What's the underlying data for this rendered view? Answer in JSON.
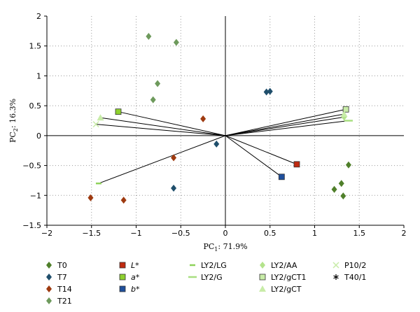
{
  "chart_data": {
    "type": "scatter",
    "title": "",
    "xlabel": "PC1: 71.9%",
    "ylabel": "PC2: 16.3%",
    "xlabel_parts": {
      "base": "PC",
      "sub": "1",
      "rest": ": 71.9%"
    },
    "ylabel_parts": {
      "base": "PC",
      "sub": "2",
      "rest": ": 16.3%"
    },
    "xlim": [
      -2,
      2
    ],
    "ylim": [
      -1.5,
      2
    ],
    "xticks": [
      -2,
      -1.5,
      -1,
      -0.5,
      0,
      0.5,
      1,
      1.5,
      2
    ],
    "yticks": [
      -1.5,
      -1,
      -0.5,
      0,
      0.5,
      1,
      1.5,
      2
    ],
    "xtick_labels": [
      "−2",
      "−1.5",
      "−1",
      "−0.5",
      "0",
      "0.5",
      "1",
      "1.5",
      "2"
    ],
    "ytick_labels": [
      "−1.5",
      "−1",
      "−0.5",
      "0",
      "0.5",
      "1",
      "1.5",
      "2"
    ],
    "grid": "dotted",
    "legend_position": "bottom",
    "loadings": [
      {
        "name": "L*",
        "x": 0.8,
        "y": -0.48
      },
      {
        "name": "b*",
        "x": 0.63,
        "y": -0.69
      },
      {
        "name": "a*",
        "x": -1.2,
        "y": 0.4
      },
      {
        "name": "LY2/LG",
        "x": -1.42,
        "y": -0.8
      },
      {
        "name": "LY2/G",
        "x": 1.38,
        "y": 0.25
      },
      {
        "name": "LY2/AA",
        "x": 1.33,
        "y": 0.31
      },
      {
        "name": "LY2/gCT1",
        "x": 1.35,
        "y": 0.44
      },
      {
        "name": "LY2/gCT",
        "x": 1.33,
        "y": 0.36
      },
      {
        "name": "P10/2",
        "x": -1.45,
        "y": 0.19
      },
      {
        "name": "LY2/gCT",
        "x": -1.4,
        "y": 0.3
      }
    ],
    "series": [
      {
        "name": "T0",
        "marker": "diamond",
        "color": "#4f7f2a",
        "points": [
          [
            1.22,
            -0.9
          ],
          [
            1.3,
            -0.8
          ],
          [
            1.32,
            -1.01
          ],
          [
            1.38,
            -0.49
          ]
        ]
      },
      {
        "name": "T7",
        "marker": "diamond",
        "color": "#1f4e6b",
        "points": [
          [
            0.46,
            0.73
          ],
          [
            0.5,
            0.74
          ],
          [
            -0.1,
            -0.14
          ],
          [
            -0.58,
            -0.88
          ]
        ]
      },
      {
        "name": "T14",
        "marker": "diamond",
        "color": "#9e3a10",
        "points": [
          [
            -0.25,
            0.28
          ],
          [
            -0.58,
            -0.37
          ],
          [
            -1.14,
            -1.08
          ],
          [
            -1.51,
            -1.04
          ]
        ]
      },
      {
        "name": "T21",
        "marker": "diamond",
        "color": "#6e9a5c",
        "points": [
          [
            -0.86,
            1.66
          ],
          [
            -0.55,
            1.56
          ],
          [
            -0.76,
            0.87
          ],
          [
            -0.81,
            0.6
          ]
        ]
      },
      {
        "name": "L*",
        "marker": "square",
        "color": "#c02a10",
        "points": [
          [
            0.8,
            -0.48
          ]
        ]
      },
      {
        "name": "a*",
        "marker": "square",
        "color": "#8ed12e",
        "points": [
          [
            -1.2,
            0.4
          ]
        ]
      },
      {
        "name": "b*",
        "marker": "square",
        "color": "#1f4f9c",
        "points": [
          [
            0.63,
            -0.69
          ]
        ]
      },
      {
        "name": "LY2/LG",
        "marker": "dash",
        "color": "#8ed25a",
        "points": [
          [
            -1.42,
            -0.8
          ]
        ]
      },
      {
        "name": "LY2/G",
        "marker": "longdash",
        "color": "#a8df80",
        "points": [
          [
            1.38,
            0.25
          ]
        ]
      },
      {
        "name": "LY2/AA",
        "marker": "diamond",
        "color": "#b4e38c",
        "points": [
          [
            1.33,
            0.31
          ]
        ]
      },
      {
        "name": "LY2/gCT1",
        "marker": "square",
        "color": "#c8eca8",
        "points": [
          [
            1.35,
            0.44
          ]
        ]
      },
      {
        "name": "LY2/gCT",
        "marker": "triangle",
        "color": "#c8eca8",
        "points": [
          [
            1.33,
            0.36
          ],
          [
            -1.4,
            0.3
          ]
        ]
      },
      {
        "name": "P10/2",
        "marker": "x",
        "color": "#c8eca8",
        "points": [
          [
            -1.45,
            0.19
          ]
        ]
      },
      {
        "name": "T40/1",
        "marker": "star",
        "color": "#000000",
        "points": []
      }
    ]
  }
}
